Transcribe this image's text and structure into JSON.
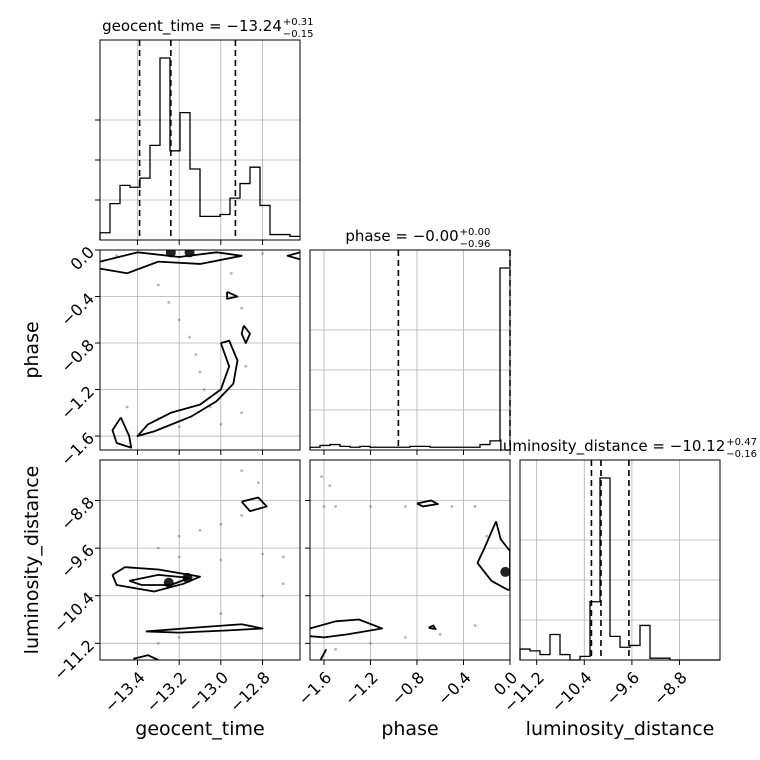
{
  "chart_data": {
    "type": "corner",
    "parameters": [
      "geocent_time",
      "phase",
      "luminosity_distance"
    ],
    "ranges": {
      "geocent_time": [
        -13.58,
        -12.62
      ],
      "phase": [
        -1.72,
        0.0
      ],
      "luminosity_distance": [
        -11.48,
        -8.12
      ]
    },
    "grid": true,
    "titles": [
      {
        "param": "geocent_time",
        "text": "geocent_time = −13.24",
        "plus": "+0.31",
        "minus": "−0.15"
      },
      {
        "param": "phase",
        "text": "phase = −0.00",
        "plus": "+0.00",
        "minus": "−0.96"
      },
      {
        "param": "luminosity_distance",
        "text": "luminosity_distance = −10.12",
        "plus": "+0.47",
        "minus": "−0.16"
      }
    ],
    "xticks": {
      "geocent_time": {
        "values": [
          -13.4,
          -13.2,
          -13.0,
          -12.8
        ],
        "labels": [
          "−13.4",
          "−13.2",
          "−13.0",
          "−12.8"
        ]
      },
      "phase": {
        "values": [
          -1.6,
          -1.2,
          -0.8,
          -0.4,
          0.0
        ],
        "labels": [
          "−1.6",
          "−1.2",
          "−0.8",
          "−0.4",
          "0.0"
        ]
      },
      "luminosity_distance": {
        "values": [
          -11.2,
          -10.4,
          -9.6,
          -8.8
        ],
        "labels": [
          "−11.2",
          "−10.4",
          "−9.6",
          "−8.8"
        ]
      }
    },
    "yticks": {
      "phase": {
        "values": [
          0.0,
          -0.4,
          -0.8,
          -1.2,
          -1.6
        ],
        "labels": [
          "0.0",
          "−0.4",
          "−0.8",
          "−1.2",
          "−1.6"
        ]
      },
      "luminosity_distance": {
        "values": [
          -8.8,
          -9.6,
          -10.4,
          -11.2
        ],
        "labels": [
          "−8.8",
          "−9.6",
          "−10.4",
          "−11.2"
        ]
      }
    },
    "quantile_lines": {
      "geocent_time": [
        -13.39,
        -13.24,
        -12.93
      ],
      "phase": [
        -0.96,
        0.0
      ],
      "luminosity_distance": [
        -10.28,
        -10.12,
        -9.65
      ]
    },
    "histograms": {
      "geocent_time": {
        "edges": [
          -13.58,
          -13.532,
          -13.484,
          -13.436,
          -13.388,
          -13.34,
          -13.292,
          -13.244,
          -13.196,
          -13.148,
          -13.1,
          -13.052,
          -13.004,
          -12.956,
          -12.908,
          -12.86,
          -12.812,
          -12.764,
          -12.716,
          -12.668,
          -12.62
        ],
        "heights": [
          0.04,
          0.2,
          0.3,
          0.29,
          0.34,
          0.52,
          1.0,
          0.49,
          0.7,
          0.39,
          0.13,
          0.13,
          0.14,
          0.23,
          0.31,
          0.4,
          0.19,
          0.03,
          0.03,
          0.02
        ]
      },
      "phase": {
        "edges": [
          -1.72,
          -1.634,
          -1.548,
          -1.462,
          -1.376,
          -1.29,
          -1.204,
          -1.118,
          -1.032,
          -0.946,
          -0.86,
          -0.774,
          -0.688,
          -0.602,
          -0.516,
          -0.43,
          -0.344,
          -0.258,
          -0.172,
          -0.086,
          0.0
        ],
        "heights": [
          0.015,
          0.025,
          0.03,
          0.02,
          0.015,
          0.02,
          0.015,
          0.015,
          0.015,
          0.015,
          0.02,
          0.02,
          0.015,
          0.015,
          0.015,
          0.015,
          0.015,
          0.03,
          0.05,
          1.0
        ]
      },
      "luminosity_distance": {
        "edges": [
          -11.48,
          -11.312,
          -11.144,
          -10.976,
          -10.808,
          -10.64,
          -10.472,
          -10.304,
          -10.136,
          -9.968,
          -9.8,
          -9.632,
          -9.464,
          -9.296,
          -9.128,
          -8.96,
          -8.792,
          -8.624,
          -8.456,
          -8.288,
          -8.12
        ],
        "heights": [
          0.06,
          0.05,
          0.03,
          0.14,
          0.03,
          0.0,
          0.02,
          0.32,
          1.0,
          0.13,
          0.07,
          0.08,
          0.19,
          0.01,
          0.01,
          0.0,
          0.0,
          0.0,
          0.0,
          0.0
        ]
      }
    },
    "pairs": [
      {
        "x": "geocent_time",
        "y": "phase",
        "contours": [
          [
            [
              -13.58,
              -0.1
            ],
            [
              -13.4,
              -0.02
            ],
            [
              -13.2,
              -0.06
            ],
            [
              -13.02,
              -0.02
            ],
            [
              -12.9,
              -0.05
            ],
            [
              -13.1,
              -0.12
            ],
            [
              -13.3,
              -0.1
            ],
            [
              -13.45,
              -0.2
            ],
            [
              -13.58,
              -0.16
            ]
          ],
          [
            [
              -13.0,
              -0.8
            ],
            [
              -12.96,
              -1.0
            ],
            [
              -13.0,
              -1.2
            ],
            [
              -13.1,
              -1.33
            ],
            [
              -13.24,
              -1.4
            ],
            [
              -13.35,
              -1.5
            ],
            [
              -13.4,
              -1.6
            ],
            [
              -13.32,
              -1.56
            ],
            [
              -13.14,
              -1.43
            ],
            [
              -13.02,
              -1.3
            ],
            [
              -12.94,
              -1.15
            ],
            [
              -12.92,
              -0.95
            ],
            [
              -12.96,
              -0.78
            ],
            [
              -13.0,
              -0.8
            ]
          ],
          [
            [
              -13.48,
              -1.44
            ],
            [
              -13.44,
              -1.6
            ],
            [
              -13.43,
              -1.7
            ],
            [
              -13.5,
              -1.66
            ],
            [
              -13.52,
              -1.55
            ],
            [
              -13.48,
              -1.44
            ]
          ],
          [
            [
              -12.89,
              -0.65
            ],
            [
              -12.86,
              -0.72
            ],
            [
              -12.88,
              -0.8
            ],
            [
              -12.9,
              -0.72
            ],
            [
              -12.89,
              -0.65
            ]
          ],
          [
            [
              -12.97,
              -0.36
            ],
            [
              -12.92,
              -0.4
            ],
            [
              -12.97,
              -0.42
            ],
            [
              -12.97,
              -0.36
            ]
          ],
          [
            [
              -12.62,
              -0.02
            ],
            [
              -12.68,
              -0.05
            ],
            [
              -12.62,
              -0.08
            ]
          ]
        ],
        "dense": [
          [
            -13.24,
            -0.02
          ],
          [
            -13.15,
            -0.02
          ]
        ],
        "scatter": [
          [
            -13.3,
            -0.3
          ],
          [
            -13.25,
            -0.45
          ],
          [
            -13.2,
            -0.6
          ],
          [
            -13.15,
            -0.75
          ],
          [
            -13.12,
            -0.9
          ],
          [
            -13.1,
            -1.05
          ],
          [
            -13.08,
            -1.2
          ],
          [
            -13.05,
            -1.35
          ],
          [
            -12.95,
            -0.2
          ],
          [
            -12.9,
            -0.5
          ],
          [
            -12.88,
            -1.0
          ],
          [
            -12.9,
            -1.4
          ],
          [
            -13.0,
            -1.5
          ],
          [
            -13.2,
            -1.52
          ],
          [
            -13.3,
            -1.45
          ],
          [
            -13.45,
            -1.35
          ],
          [
            -13.5,
            -0.05
          ],
          [
            -12.8,
            -0.03
          ]
        ]
      },
      {
        "x": "geocent_time",
        "y": "luminosity_distance",
        "contours": [
          [
            [
              -13.52,
              -10.05
            ],
            [
              -13.46,
              -9.92
            ],
            [
              -13.3,
              -9.96
            ],
            [
              -13.1,
              -10.08
            ],
            [
              -13.18,
              -10.2
            ],
            [
              -13.32,
              -10.33
            ],
            [
              -13.5,
              -10.22
            ],
            [
              -13.52,
              -10.05
            ]
          ],
          [
            [
              -13.44,
              -10.15
            ],
            [
              -13.3,
              -10.05
            ],
            [
              -13.15,
              -10.1
            ],
            [
              -13.24,
              -10.22
            ],
            [
              -13.38,
              -10.22
            ],
            [
              -13.44,
              -10.15
            ]
          ],
          [
            [
              -12.9,
              -8.82
            ],
            [
              -12.82,
              -8.75
            ],
            [
              -12.78,
              -8.9
            ],
            [
              -12.86,
              -8.98
            ],
            [
              -12.9,
              -8.82
            ]
          ],
          [
            [
              -13.36,
              -11.0
            ],
            [
              -13.1,
              -10.93
            ],
            [
              -12.9,
              -10.88
            ],
            [
              -12.8,
              -10.95
            ],
            [
              -12.95,
              -10.98
            ],
            [
              -13.2,
              -11.02
            ],
            [
              -13.36,
              -11.0
            ]
          ],
          [
            [
              -13.42,
              -11.46
            ],
            [
              -13.35,
              -11.4
            ],
            [
              -13.3,
              -11.48
            ]
          ]
        ],
        "dense": [
          [
            -13.25,
            -10.18
          ],
          [
            -13.16,
            -10.1
          ]
        ],
        "scatter": [
          [
            -13.2,
            -9.4
          ],
          [
            -13.1,
            -9.3
          ],
          [
            -13.0,
            -9.2
          ],
          [
            -12.9,
            -9.05
          ],
          [
            -13.3,
            -9.6
          ],
          [
            -13.2,
            -9.75
          ],
          [
            -13.0,
            -9.8
          ],
          [
            -12.8,
            -9.7
          ],
          [
            -12.7,
            -9.75
          ],
          [
            -13.3,
            -11.2
          ],
          [
            -13.2,
            -11.1
          ],
          [
            -13.0,
            -10.7
          ],
          [
            -12.8,
            -10.4
          ],
          [
            -12.7,
            -10.2
          ],
          [
            -12.9,
            -8.3
          ],
          [
            -12.82,
            -8.5
          ]
        ]
      },
      {
        "x": "phase",
        "y": "luminosity_distance",
        "contours": [
          [
            [
              -1.72,
              -10.95
            ],
            [
              -1.5,
              -10.83
            ],
            [
              -1.3,
              -10.8
            ],
            [
              -1.1,
              -10.95
            ],
            [
              -1.4,
              -11.05
            ],
            [
              -1.6,
              -11.1
            ],
            [
              -1.72,
              -11.08
            ]
          ],
          [
            [
              -0.8,
              -8.85
            ],
            [
              -0.68,
              -8.8
            ],
            [
              -0.62,
              -8.86
            ],
            [
              -0.75,
              -8.9
            ],
            [
              -0.8,
              -8.85
            ]
          ],
          [
            [
              -0.7,
              -10.94
            ],
            [
              -0.66,
              -10.9
            ],
            [
              -0.64,
              -10.96
            ],
            [
              -0.7,
              -10.94
            ]
          ],
          [
            [
              -0.12,
              -9.15
            ],
            [
              -0.22,
              -9.6
            ],
            [
              -0.28,
              -9.85
            ],
            [
              -0.16,
              -10.15
            ],
            [
              -0.02,
              -10.3
            ],
            [
              0.0,
              -10.3
            ],
            [
              0.0,
              -9.65
            ],
            [
              -0.08,
              -9.45
            ],
            [
              -0.12,
              -9.15
            ]
          ],
          [
            [
              -1.58,
              -11.3
            ],
            [
              -1.63,
              -11.48
            ]
          ]
        ],
        "dense": [
          [
            -0.04,
            -10.0
          ]
        ],
        "scatter": [
          [
            -1.6,
            -8.9
          ],
          [
            -1.5,
            -8.9
          ],
          [
            -1.2,
            -8.9
          ],
          [
            -0.9,
            -8.9
          ],
          [
            -0.5,
            -8.9
          ],
          [
            -0.3,
            -8.9
          ],
          [
            -1.5,
            -11.3
          ],
          [
            -1.2,
            -11.2
          ],
          [
            -0.9,
            -11.1
          ],
          [
            -0.6,
            -11.05
          ],
          [
            -0.3,
            -10.9
          ],
          [
            -0.2,
            -9.4
          ],
          [
            -1.62,
            -8.4
          ],
          [
            -1.55,
            -8.55
          ]
        ]
      }
    ]
  }
}
